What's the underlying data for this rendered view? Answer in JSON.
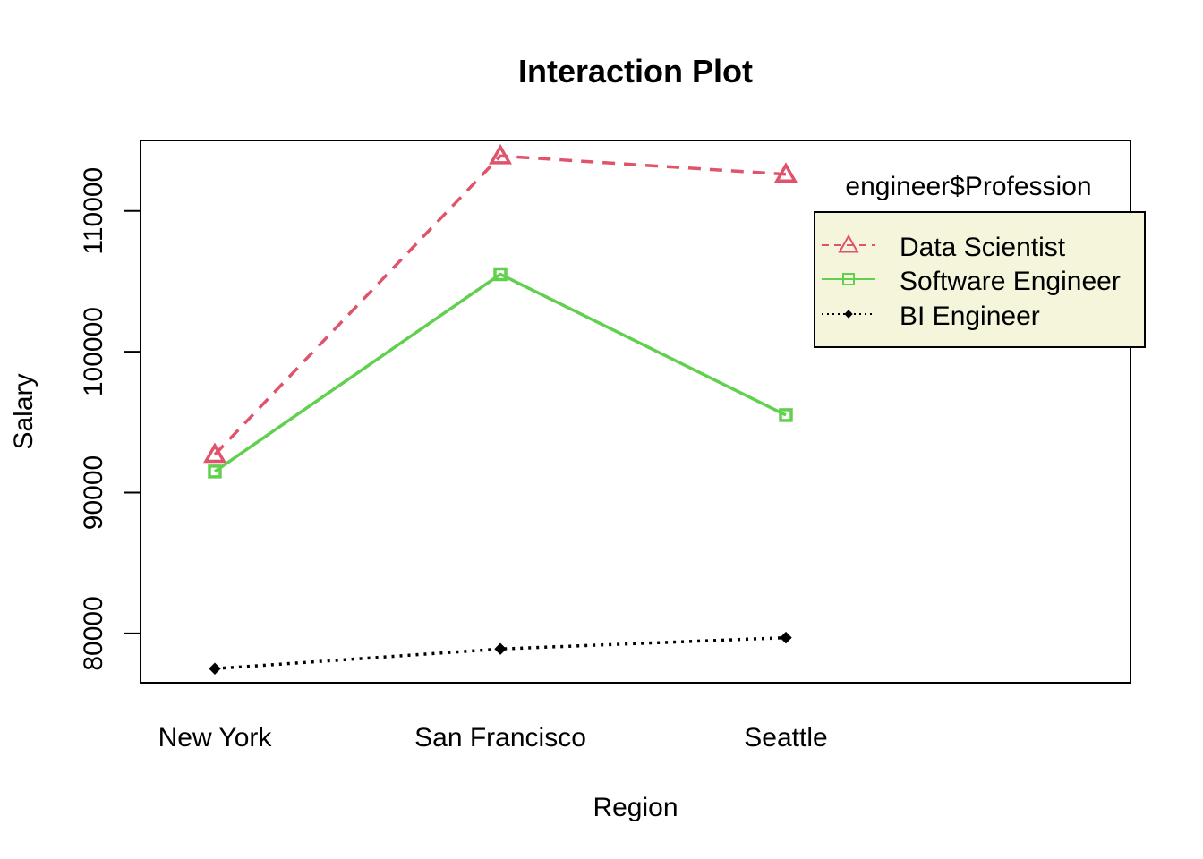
{
  "chart_data": {
    "type": "line",
    "title": "Interaction Plot",
    "xlabel": "Region",
    "ylabel": "Salary",
    "categories": [
      "New York",
      "San Francisco",
      "Seattle"
    ],
    "ylim": [
      76500,
      115000
    ],
    "yticks": [
      80000,
      90000,
      100000,
      110000
    ],
    "ytick_labels": [
      "80000",
      "90000",
      "100000",
      "110000"
    ],
    "grid": false,
    "legend": {
      "title": "engineer$Profession",
      "placement": "top-right",
      "background": "#f5f5dc"
    },
    "series": [
      {
        "name": "Data Scientist",
        "values": [
          92700,
          113900,
          112600
        ],
        "color": "#df536b",
        "line_style": "dashed",
        "marker": "triangle-open"
      },
      {
        "name": "Software Engineer",
        "values": [
          91500,
          105500,
          95500
        ],
        "color": "#61d04f",
        "line_style": "solid",
        "marker": "square-open"
      },
      {
        "name": "BI Engineer",
        "values": [
          77500,
          78900,
          79700
        ],
        "color": "#000000",
        "line_style": "dotted",
        "marker": "diamond-filled"
      }
    ]
  }
}
